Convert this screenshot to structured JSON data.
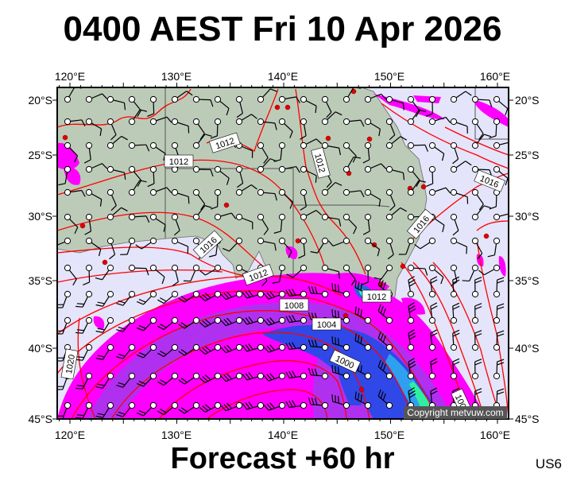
{
  "title": "0400 AEST Fri 10 Apr 2026",
  "footer": "Forecast +60 hr",
  "model_code": "US6",
  "copyright": "Copyright metvuw.com",
  "axes": {
    "lon_labels": [
      "120°E",
      "130°E",
      "140°E",
      "150°E",
      "160°E"
    ],
    "lat_labels": [
      "20°S",
      "25°S",
      "30°S",
      "35°S",
      "40°S",
      "45°S"
    ]
  },
  "isobar_labels": [
    "1012",
    "1012",
    "1012",
    "1016",
    "1016",
    "1016",
    "1012",
    "1008",
    "1004",
    "1012",
    "1000",
    "1020",
    "100"
  ],
  "colors": {
    "ocean": "#e4e4fa",
    "land": "#bccbb8",
    "isobar": "#ff0000",
    "precip_light": "#ff00ff",
    "precip_medium": "#9a2fe0",
    "precip_heavy": "#2840e0",
    "precip_very_heavy": "#20e8a0"
  }
}
